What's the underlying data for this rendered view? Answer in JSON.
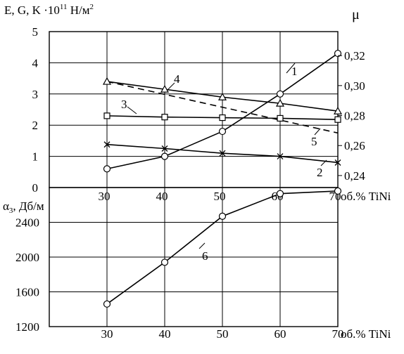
{
  "chart_data": [
    {
      "type": "line",
      "ylabel_left": "E, G, K  ·10",
      "ylabel_left_exp": "11",
      "ylabel_left_unit": " Н/м",
      "ylabel_left_unit_exp": "2",
      "ylabel_right": "μ",
      "xlabel": "об.% TiNi",
      "x_ticks": [
        30,
        40,
        50,
        60,
        70
      ],
      "xlim": [
        20,
        70
      ],
      "ylim_left": [
        0,
        5
      ],
      "y_ticks_left": [
        0,
        1,
        2,
        3,
        4,
        5
      ],
      "ylim_right": [
        0.232,
        0.336
      ],
      "y_ticks_right": [
        "0,24",
        "0,26",
        "0,28",
        "0,30",
        "0,32"
      ],
      "y_ticks_right_values": [
        0.24,
        0.26,
        0.28,
        0.3,
        0.32
      ],
      "grid": true,
      "series": [
        {
          "name": "1",
          "axis": "left",
          "marker": "circle",
          "style": "solid",
          "x": [
            30,
            40,
            50,
            60,
            70
          ],
          "y": [
            0.6,
            1.0,
            1.8,
            3.0,
            4.3
          ]
        },
        {
          "name": "2",
          "axis": "left",
          "marker": "x",
          "style": "solid",
          "x": [
            30,
            40,
            50,
            60,
            70
          ],
          "y": [
            1.38,
            1.25,
            1.1,
            1.0,
            0.8
          ]
        },
        {
          "name": "3",
          "axis": "left",
          "marker": "square",
          "style": "solid",
          "x": [
            30,
            40,
            50,
            60,
            70
          ],
          "y": [
            2.3,
            2.26,
            2.24,
            2.22,
            2.18
          ]
        },
        {
          "name": "4",
          "axis": "left",
          "marker": "triangle",
          "style": "solid",
          "x": [
            30,
            40,
            50,
            60,
            70
          ],
          "y": [
            3.4,
            3.15,
            2.9,
            2.7,
            2.45
          ]
        },
        {
          "name": "5",
          "axis": "left",
          "marker": "none",
          "style": "dashed",
          "x": [
            30,
            70
          ],
          "y": [
            3.4,
            1.75
          ]
        }
      ]
    },
    {
      "type": "line",
      "ylabel": "α",
      "ylabel_sub": "3",
      "ylabel_unit": ", Дб/м",
      "xlabel": "об.% TiNi",
      "x_ticks": [
        30,
        40,
        50,
        60,
        70
      ],
      "xlim": [
        20,
        70
      ],
      "ylim": [
        1200,
        2800
      ],
      "y_ticks": [
        1200,
        1600,
        2000,
        2400
      ],
      "grid": true,
      "series": [
        {
          "name": "6",
          "marker": "circle",
          "style": "solid",
          "x": [
            30,
            40,
            50,
            60,
            70
          ],
          "y": [
            1460,
            1940,
            2470,
            2730,
            2760
          ]
        }
      ]
    }
  ]
}
